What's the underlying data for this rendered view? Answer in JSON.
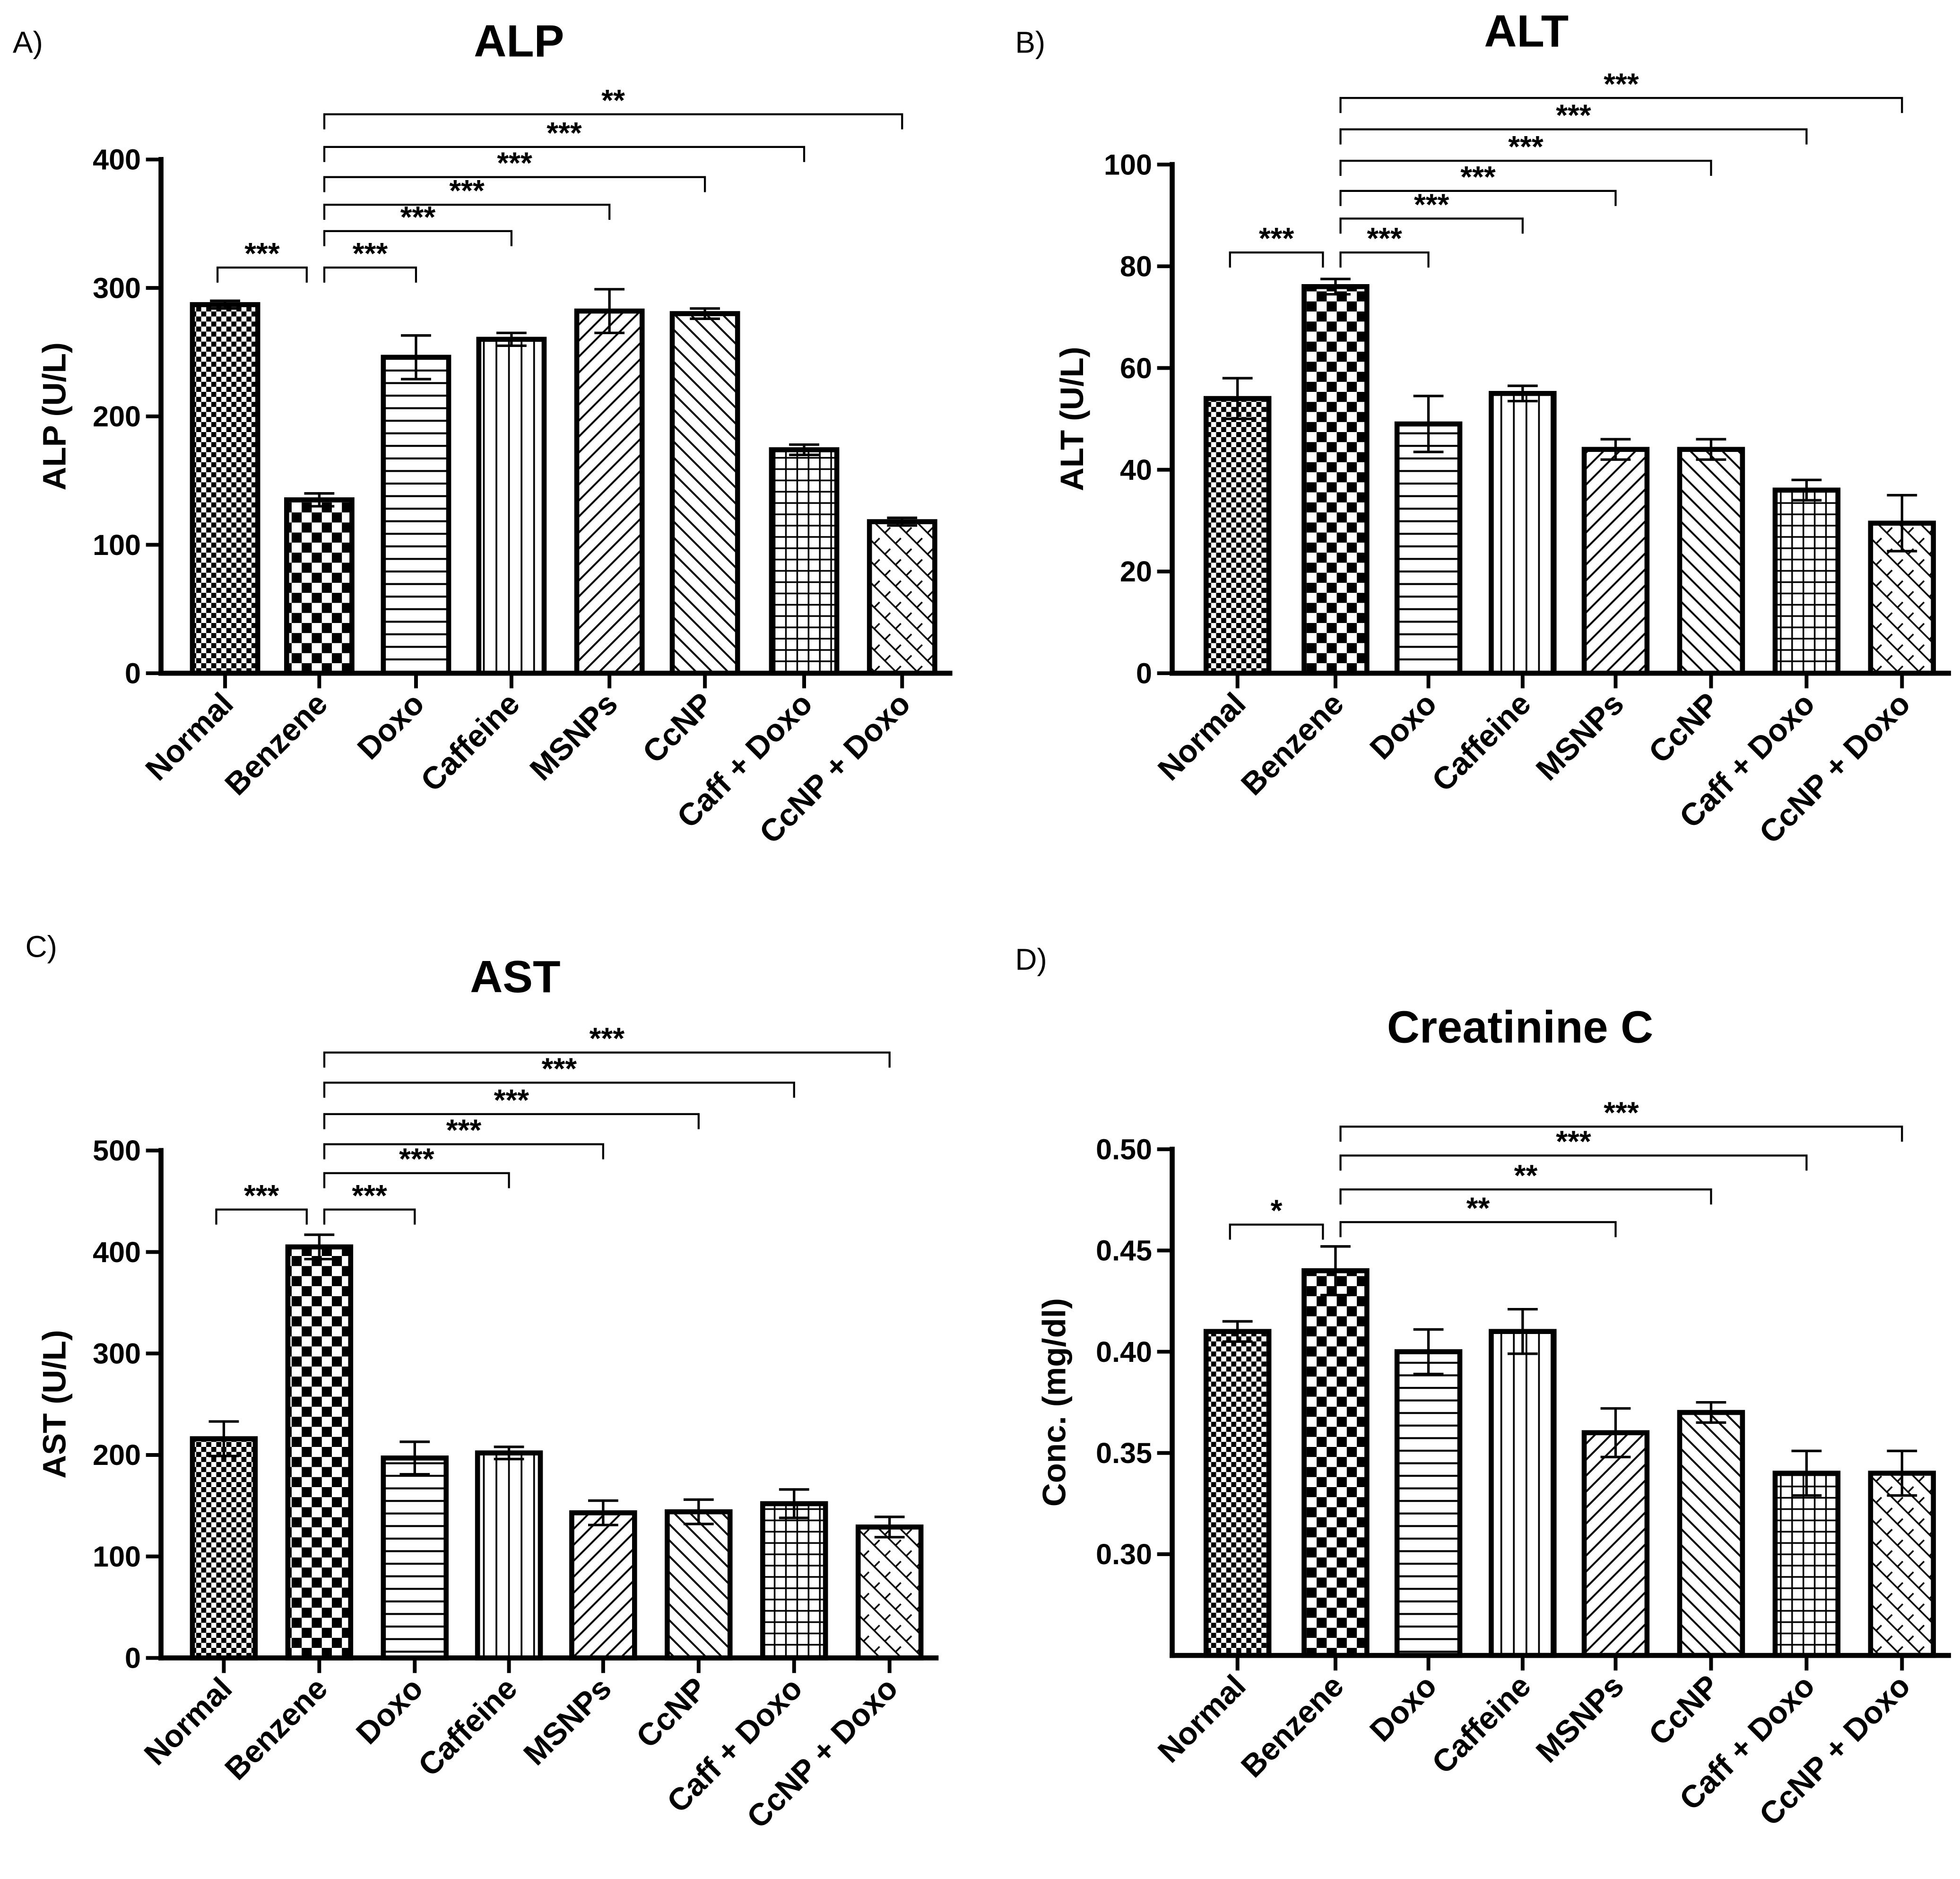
{
  "chart_data": [
    {
      "panel_label": "A)",
      "type": "bar",
      "title": "ALP",
      "ylabel": "ALP (U/L)",
      "xlabel": "",
      "ylim": [
        0,
        400
      ],
      "yticks": [
        "0",
        "100",
        "200",
        "300",
        "400"
      ],
      "ytick_values": [
        0,
        100,
        200,
        300,
        400
      ],
      "categories": [
        "Normal",
        "Benzene",
        "Doxo",
        "Caffeine",
        "MSNPs",
        "CcNP",
        "Caff + Doxo",
        "CcNP + Doxo"
      ],
      "values": [
        287,
        135,
        246,
        260,
        282,
        280,
        174,
        118
      ],
      "errors": [
        3,
        5,
        17,
        5,
        17,
        4,
        4,
        3
      ],
      "significance": [
        {
          "from": 0,
          "to": 1,
          "label": "***"
        },
        {
          "from": 1,
          "to": 2,
          "label": "***"
        },
        {
          "from": 1,
          "to": 3,
          "label": "***"
        },
        {
          "from": 1,
          "to": 4,
          "label": "***"
        },
        {
          "from": 1,
          "to": 5,
          "label": "***"
        },
        {
          "from": 1,
          "to": 6,
          "label": "***"
        },
        {
          "from": 1,
          "to": 7,
          "label": "**"
        }
      ]
    },
    {
      "panel_label": "B)",
      "type": "bar",
      "title": "ALT",
      "ylabel": "ALT (U/L)",
      "xlabel": "",
      "ylim": [
        0,
        100
      ],
      "yticks": [
        "0",
        "20",
        "40",
        "60",
        "80",
        "100"
      ],
      "ytick_values": [
        0,
        20,
        40,
        60,
        80,
        100
      ],
      "categories": [
        "Normal",
        "Benzene",
        "Doxo",
        "Caffeine",
        "MSNPs",
        "CcNP",
        "Caff + Doxo",
        "CcNP + Doxo"
      ],
      "values": [
        54,
        76,
        49,
        55,
        44,
        44,
        36,
        29.5
      ],
      "errors": [
        4,
        1.5,
        5.5,
        1.5,
        2,
        2,
        2,
        5.5
      ],
      "significance": [
        {
          "from": 0,
          "to": 1,
          "label": "***"
        },
        {
          "from": 1,
          "to": 2,
          "label": "***"
        },
        {
          "from": 1,
          "to": 3,
          "label": "***"
        },
        {
          "from": 1,
          "to": 4,
          "label": "***"
        },
        {
          "from": 1,
          "to": 5,
          "label": "***"
        },
        {
          "from": 1,
          "to": 6,
          "label": "***"
        },
        {
          "from": 1,
          "to": 7,
          "label": "***"
        }
      ]
    },
    {
      "panel_label": "C)",
      "type": "bar",
      "title": "AST",
      "ylabel": "AST (U/L)",
      "xlabel": "",
      "ylim": [
        0,
        500
      ],
      "yticks": [
        "0",
        "100",
        "200",
        "300",
        "400",
        "500"
      ],
      "ytick_values": [
        0,
        100,
        200,
        300,
        400,
        500
      ],
      "categories": [
        "Normal",
        "Benzene",
        "Doxo",
        "Caffeine",
        "MSNPs",
        "CcNP",
        "Caff + Doxo",
        "CcNP + Doxo"
      ],
      "values": [
        216,
        405,
        197,
        202,
        143,
        144,
        152,
        129
      ],
      "errors": [
        17,
        12,
        16,
        6,
        12,
        12,
        14,
        10
      ],
      "significance": [
        {
          "from": 0,
          "to": 1,
          "label": "***"
        },
        {
          "from": 1,
          "to": 2,
          "label": "***"
        },
        {
          "from": 1,
          "to": 3,
          "label": "***"
        },
        {
          "from": 1,
          "to": 4,
          "label": "***"
        },
        {
          "from": 1,
          "to": 5,
          "label": "***"
        },
        {
          "from": 1,
          "to": 6,
          "label": "***"
        },
        {
          "from": 1,
          "to": 7,
          "label": "***"
        }
      ]
    },
    {
      "panel_label": "D)",
      "type": "bar",
      "title": "Creatinine C",
      "ylabel": "Conc. (mg/dl)",
      "xlabel": "",
      "ylim": [
        0.25,
        0.5
      ],
      "yticks": [
        "0.30",
        "0.35",
        "0.40",
        "0.45",
        "0.50"
      ],
      "ytick_values": [
        0.3,
        0.35,
        0.4,
        0.45,
        0.5
      ],
      "categories": [
        "Normal",
        "Benzene",
        "Doxo",
        "Caffeine",
        "MSNPs",
        "CcNP",
        "Caff + Doxo",
        "CcNP + Doxo"
      ],
      "values": [
        0.41,
        0.44,
        0.4,
        0.41,
        0.36,
        0.37,
        0.34,
        0.34
      ],
      "errors": [
        0.005,
        0.012,
        0.011,
        0.011,
        0.012,
        0.005,
        0.011,
        0.011
      ],
      "significance": [
        {
          "from": 0,
          "to": 1,
          "label": "*"
        },
        {
          "from": 1,
          "to": 4,
          "label": "**"
        },
        {
          "from": 1,
          "to": 5,
          "label": "**"
        },
        {
          "from": 1,
          "to": 6,
          "label": "***"
        },
        {
          "from": 1,
          "to": 7,
          "label": "***"
        }
      ]
    }
  ]
}
